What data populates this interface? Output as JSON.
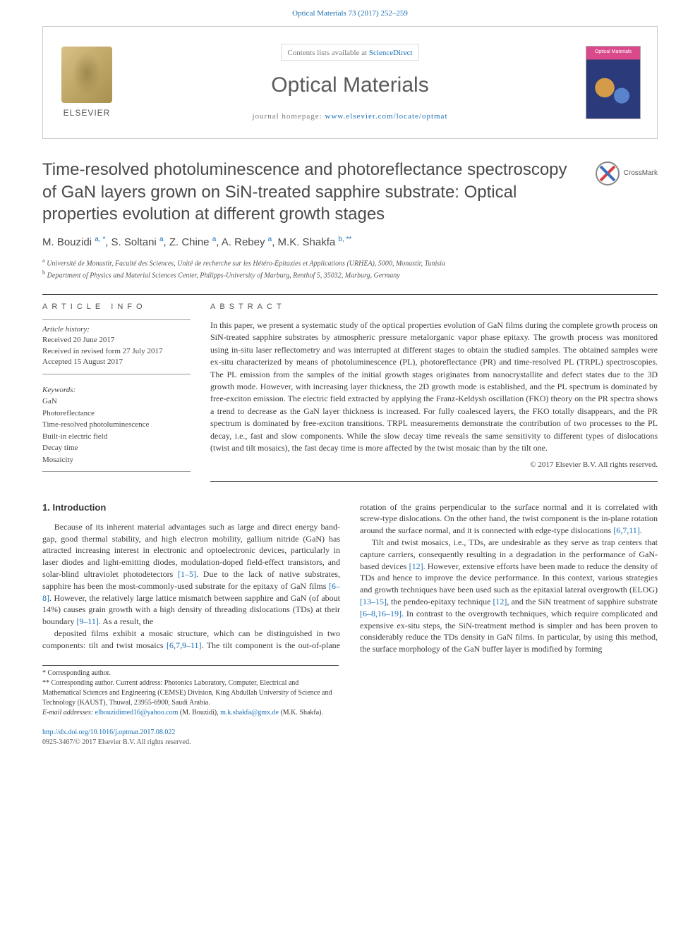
{
  "citation": "Optical Materials 73 (2017) 252–259",
  "header": {
    "contents_prefix": "Contents lists available at ",
    "contents_link": "ScienceDirect",
    "journal_name": "Optical Materials",
    "homepage_prefix": "journal homepage: ",
    "homepage_url": "www.elsevier.com/locate/optmat",
    "logo_label": "ELSEVIER",
    "cover_label": "Optical Materials"
  },
  "crossmark_label": "CrossMark",
  "title": "Time-resolved photoluminescence and photoreflectance spectroscopy of GaN layers grown on SiN-treated sapphire substrate: Optical properties evolution at different growth stages",
  "authors_html": "M. Bouzidi <sup>a, *</sup>, S. Soltani <sup>a</sup>, Z. Chine <sup>a</sup>, A. Rebey <sup>a</sup>, M.K. Shakfa <sup>b, **</sup>",
  "affiliations": {
    "a": "Université de Monastir, Faculté des Sciences, Unité de recherche sur les Hétéro-Epitaxies et Applications (URHEA), 5000, Monastir, Tunisia",
    "b": "Department of Physics and Material Sciences Center, Philipps-University of Marburg, Renthof 5, 35032, Marburg, Germany"
  },
  "info_heading": "ARTICLE INFO",
  "abstract_heading": "ABSTRACT",
  "history": {
    "label": "Article history:",
    "received": "Received 20 June 2017",
    "revised": "Received in revised form 27 July 2017",
    "accepted": "Accepted 15 August 2017"
  },
  "keywords": {
    "label": "Keywords:",
    "items": [
      "GaN",
      "Photoreflectance",
      "Time-resolved photoluminescence",
      "Built-in electric field",
      "Decay time",
      "Mosaicity"
    ]
  },
  "abstract": "In this paper, we present a systematic study of the optical properties evolution of GaN films during the complete growth process on SiN-treated sapphire substrates by atmospheric pressure metalorganic vapor phase epitaxy. The growth process was monitored using in-situ laser reflectometry and was interrupted at different stages to obtain the studied samples. The obtained samples were ex-situ characterized by means of photoluminescence (PL), photoreflectance (PR) and time-resolved PL (TRPL) spectroscopies. The PL emission from the samples of the initial growth stages originates from nanocrystallite and defect states due to the 3D growth mode. However, with increasing layer thickness, the 2D growth mode is established, and the PL spectrum is dominated by free-exciton emission. The electric field extracted by applying the Franz-Keldysh oscillation (FKO) theory on the PR spectra shows a trend to decrease as the GaN layer thickness is increased. For fully coalesced layers, the FKO totally disappears, and the PR spectrum is dominated by free-exciton transitions. TRPL measurements demonstrate the contribution of two processes to the PL decay, i.e., fast and slow components. While the slow decay time reveals the same sensitivity to different types of dislocations (twist and tilt mosaics), the fast decay time is more affected by the twist mosaic than by the tilt one.",
  "copyright": "© 2017 Elsevier B.V. All rights reserved.",
  "section_heading": "1. Introduction",
  "body_p1": "Because of its inherent material advantages such as large and direct energy band-gap, good thermal stability, and high electron mobility, gallium nitride (GaN) has attracted increasing interest in electronic and optoelectronic devices, particularly in laser diodes and light-emitting diodes, modulation-doped field-effect transistors, and solar-blind ultraviolet photodetectors [1–5]. Due to the lack of native substrates, sapphire has been the most-commonly-used substrate for the epitaxy of GaN films [6–8]. However, the relatively large lattice mismatch between sapphire and GaN (of about 14%) causes grain growth with a high density of threading dislocations (TDs) at their boundary [9–11]. As a result, the",
  "body_p2": "deposited films exhibit a mosaic structure, which can be distinguished in two components: tilt and twist mosaics [6,7,9–11]. The tilt component is the out-of-plane rotation of the grains perpendicular to the surface normal and it is correlated with screw-type dislocations. On the other hand, the twist component is the in-plane rotation around the surface normal, and it is connected with edge-type dislocations [6,7,11].",
  "body_p3": "Tilt and twist mosaics, i.e., TDs, are undesirable as they serve as trap centers that capture carriers, consequently resulting in a degradation in the performance of GaN-based devices [12]. However, extensive efforts have been made to reduce the density of TDs and hence to improve the device performance. In this context, various strategies and growth techniques have been used such as the epitaxial lateral overgrowth (ELOG) [13–15], the pendeo-epitaxy technique [12], and the SiN treatment of sapphire substrate [6–8,16–19]. In contrast to the overgrowth techniques, which require complicated and expensive ex-situ steps, the SiN-treatment method is simpler and has been proven to considerably reduce the TDs density in GaN films. In particular, by using this method, the surface morphology of the GaN buffer layer is modified by forming",
  "footnotes": {
    "star": "Corresponding author.",
    "dstar": "Corresponding author. Current address: Photonics Laboratory, Computer, Electrical and Mathematical Sciences and Engineering (CEMSE) Division, King Abdullah University of Science and Technology (KAUST), Thuwal, 23955-6900, Saudi Arabia.",
    "email_label": "E-mail addresses:",
    "email1": "elbouzidimed16@yahoo.com",
    "email1_name": "(M. Bouzidi),",
    "email2": "m.k.shakfa@gmx.de",
    "email2_name": "(M.K. Shakfa)."
  },
  "footer": {
    "doi": "http://dx.doi.org/10.1016/j.optmat.2017.08.022",
    "issn_copyright": "0925-3467/© 2017 Elsevier B.V. All rights reserved."
  },
  "colors": {
    "link": "#1a6fb5",
    "text": "#3a3a3a",
    "rule": "#333333",
    "light_rule": "#999999",
    "box_border": "#cccccc"
  }
}
